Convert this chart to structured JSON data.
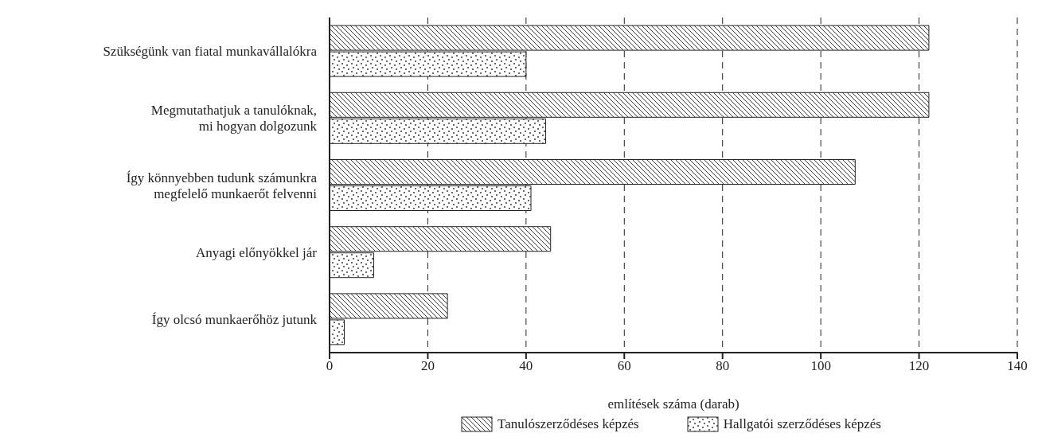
{
  "chart_data": {
    "type": "bar",
    "orientation": "horizontal",
    "xlabel": "említések száma (darab)",
    "categories": [
      "Szükségünk van fiatal munkavállalókra",
      "Megmutathatjuk a tanulóknak,\nmi hogyan dolgozunk",
      "Így könnyebben tudunk számunkra\nmegfelelő munkaerőt felvenni",
      "Anyagi előnyökkel jár",
      "Így olcsó munkaerőhöz jutunk"
    ],
    "series": [
      {
        "name": "Tanulószerződéses képzés",
        "color": "#222222",
        "values": [
          122,
          122,
          107,
          45,
          24
        ]
      },
      {
        "name": "Hallgatói szerződéses képzés",
        "color": "#222222",
        "values": [
          40,
          44,
          41,
          9,
          3
        ]
      }
    ],
    "xlim": [
      0,
      140
    ],
    "xticks": [
      0,
      20,
      40,
      60,
      80,
      100,
      120,
      140
    ],
    "grid": "x",
    "legend": "bottom"
  }
}
